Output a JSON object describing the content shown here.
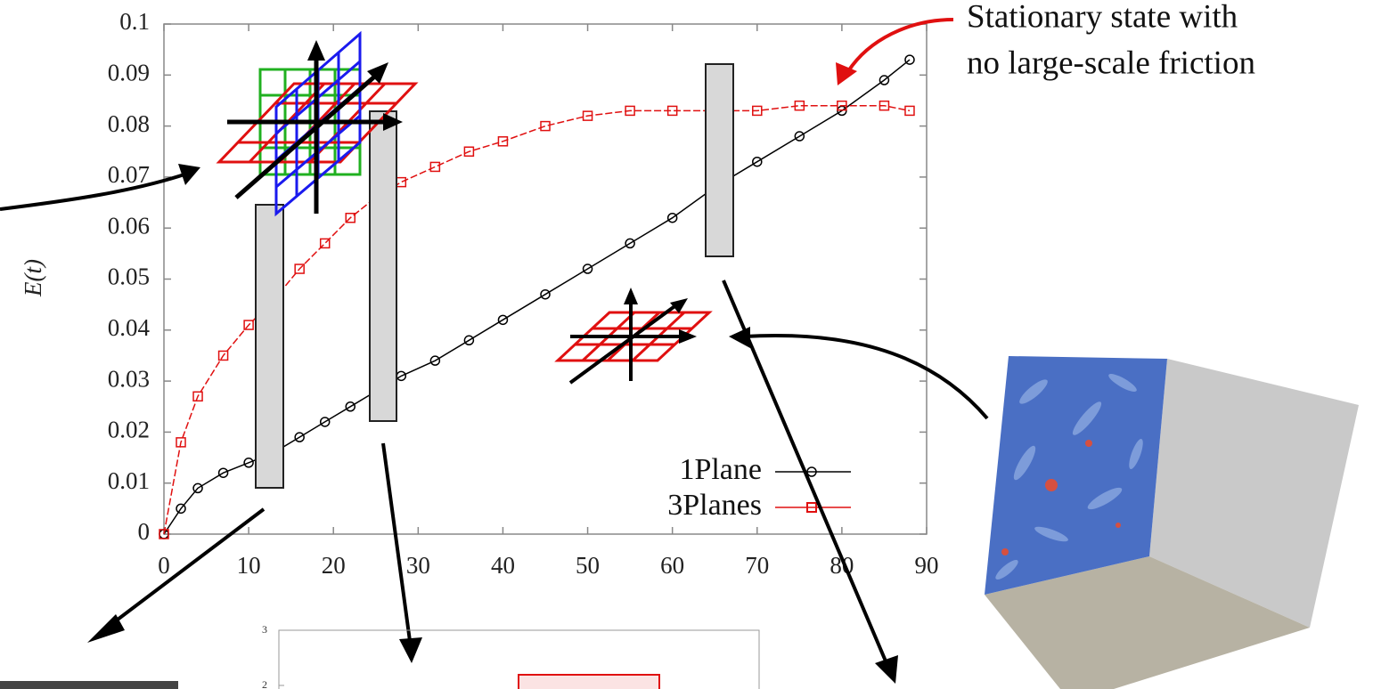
{
  "chart_data": [
    {
      "type": "line",
      "y_label": "E(t)",
      "annotation": [
        "Stationary state with",
        "no large-scale friction"
      ],
      "xlim": [
        0,
        90
      ],
      "xticks": [
        0,
        10,
        20,
        30,
        40,
        50,
        60,
        70,
        80,
        90
      ],
      "ylim": [
        0,
        0.1
      ],
      "yticks": [
        0,
        0.01,
        0.02,
        0.03,
        0.04,
        0.05,
        0.06,
        0.07,
        0.08,
        0.09,
        0.1
      ],
      "x": [
        0,
        2,
        4,
        7,
        10,
        13,
        16,
        19,
        22,
        25,
        28,
        32,
        36,
        40,
        45,
        50,
        55,
        60,
        65,
        70,
        75,
        80,
        85,
        88
      ],
      "series": [
        {
          "name": "1Plane",
          "color": "#000000",
          "marker": "circle",
          "values": [
            0,
            0.005,
            0.009,
            0.012,
            0.014,
            0.016,
            0.019,
            0.022,
            0.025,
            0.028,
            0.031,
            0.034,
            0.038,
            0.042,
            0.047,
            0.052,
            0.057,
            0.062,
            0.068,
            0.073,
            0.078,
            0.083,
            0.089,
            0.093
          ]
        },
        {
          "name": "3Planes",
          "color": "#e01010",
          "marker": "square",
          "values": [
            0,
            0.018,
            0.027,
            0.035,
            0.041,
            0.046,
            0.052,
            0.057,
            0.062,
            0.066,
            0.069,
            0.072,
            0.075,
            0.077,
            0.08,
            0.082,
            0.083,
            0.083,
            0.083,
            0.083,
            0.084,
            0.084,
            0.084,
            0.083
          ]
        }
      ]
    },
    {
      "type": "inset",
      "ylim": [
        2,
        3
      ],
      "yticks": [
        2,
        3
      ]
    }
  ]
}
